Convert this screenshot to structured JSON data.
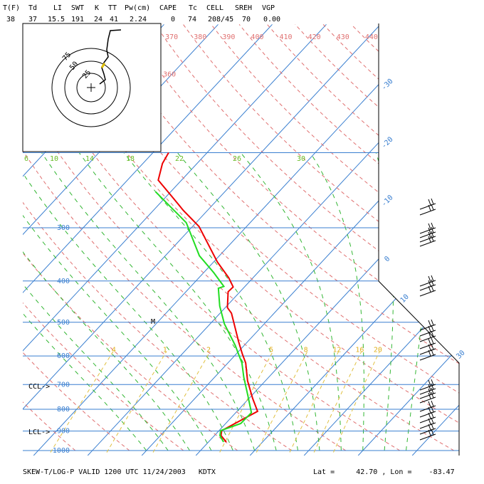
{
  "header": {
    "labels": [
      "T(F)",
      "Td",
      "LI",
      "SWT",
      "K",
      "TT",
      "Pw(cm)",
      "CAPE",
      "Tc",
      "CELL",
      "SREH",
      "VGP"
    ],
    "values": [
      "38",
      "37",
      "15.5",
      "191",
      "24",
      "41",
      "2.24",
      "0",
      "74",
      "208/45",
      "70",
      "0.00"
    ]
  },
  "chart_data": {
    "type": "skewt",
    "log_y": true,
    "ylim": [
      1000,
      100
    ],
    "yticks": [
      1000,
      900,
      800,
      700,
      600,
      500,
      400,
      300,
      {
        "value": 200,
        "label": null
      }
    ],
    "isotherm_labels": [
      -30,
      -20,
      -10,
      0,
      10,
      30
    ],
    "theta_labels": [
      360,
      370,
      380,
      390,
      400,
      410,
      420,
      430,
      440
    ],
    "moist_labels": [
      6,
      10,
      14,
      18,
      22,
      26,
      30
    ],
    "mixing_ratio_labels": [
      {
        "value": 0.4,
        "label": ".4"
      },
      1,
      2,
      5,
      8,
      12,
      16,
      20
    ],
    "series": [
      {
        "color": "#ee0000",
        "pressure": [
          955,
          922,
          898,
          809,
          755,
          686,
          623,
          593,
          555,
          476,
          462,
          424,
          413,
          393,
          361,
          298,
          273,
          252,
          232,
          212,
          200
        ],
        "values": [
          3.3,
          1.2,
          0.5,
          3.8,
          0.7,
          -3.3,
          -6.7,
          -8.9,
          -11.7,
          -17.9,
          -19.6,
          -22.2,
          -22.1,
          -24.5,
          -29.3,
          -38.8,
          -44.5,
          -49.3,
          -54.3,
          -56.4,
          -57.1
        ]
      },
      {
        "color": "#22dd22",
        "pressure": [
          955,
          922,
          898,
          864,
          815,
          741,
          673,
          623,
          566,
          504,
          458,
          416,
          412,
          382,
          349,
          292,
          247
        ],
        "values": [
          2.8,
          1.0,
          0.3,
          2.8,
          2.9,
          -0.8,
          -4.6,
          -7.4,
          -11.7,
          -17.4,
          -21.3,
          -24.6,
          -23.9,
          -28.2,
          -33.7,
          -41.8,
          -52.8
        ]
      }
    ],
    "annotations": {
      "ccl": "CCL->",
      "lcl": "LCL->",
      "m": "M"
    },
    "hodograph": {
      "rings": [
        25,
        50,
        75
      ]
    }
  },
  "footer": {
    "left": "SKEW-T/LOG-P VALID 1200 UTC 11/24/2003   KDTX",
    "right": "Lat =     42.70 , Lon =    -83.47"
  }
}
